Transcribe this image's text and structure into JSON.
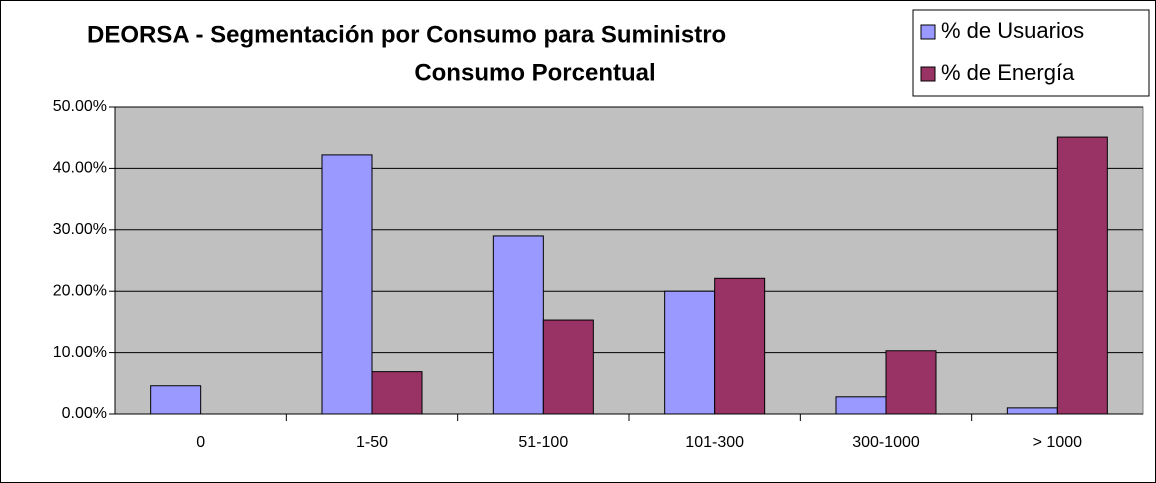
{
  "chart_data": {
    "type": "bar",
    "title": [
      "DEORSA - Segmentación por Consumo para  Suministro",
      "Consumo Porcentual"
    ],
    "categories": [
      "0",
      "1-50",
      "51-100",
      "101-300",
      "300-1000",
      "> 1000"
    ],
    "series": [
      {
        "name": "% de Usuarios",
        "color": "#9999ff",
        "values": [
          4.6,
          42.2,
          29.0,
          20.0,
          2.8,
          1.0
        ]
      },
      {
        "name": "% de Energía",
        "color": "#993366",
        "values": [
          0,
          6.9,
          15.3,
          22.1,
          10.3,
          45.1
        ]
      }
    ],
    "ylim": [
      0,
      50
    ],
    "yticks": [
      {
        "value": 0,
        "label": "0.00%"
      },
      {
        "value": 10,
        "label": "10.00%"
      },
      {
        "value": 20,
        "label": "20.00%"
      },
      {
        "value": 30,
        "label": "30.00%"
      },
      {
        "value": 40,
        "label": "40.00%"
      },
      {
        "value": 50,
        "label": "50.00%"
      }
    ],
    "grid": true,
    "legend": "top-right",
    "plot_background": "#c0c0c0"
  }
}
